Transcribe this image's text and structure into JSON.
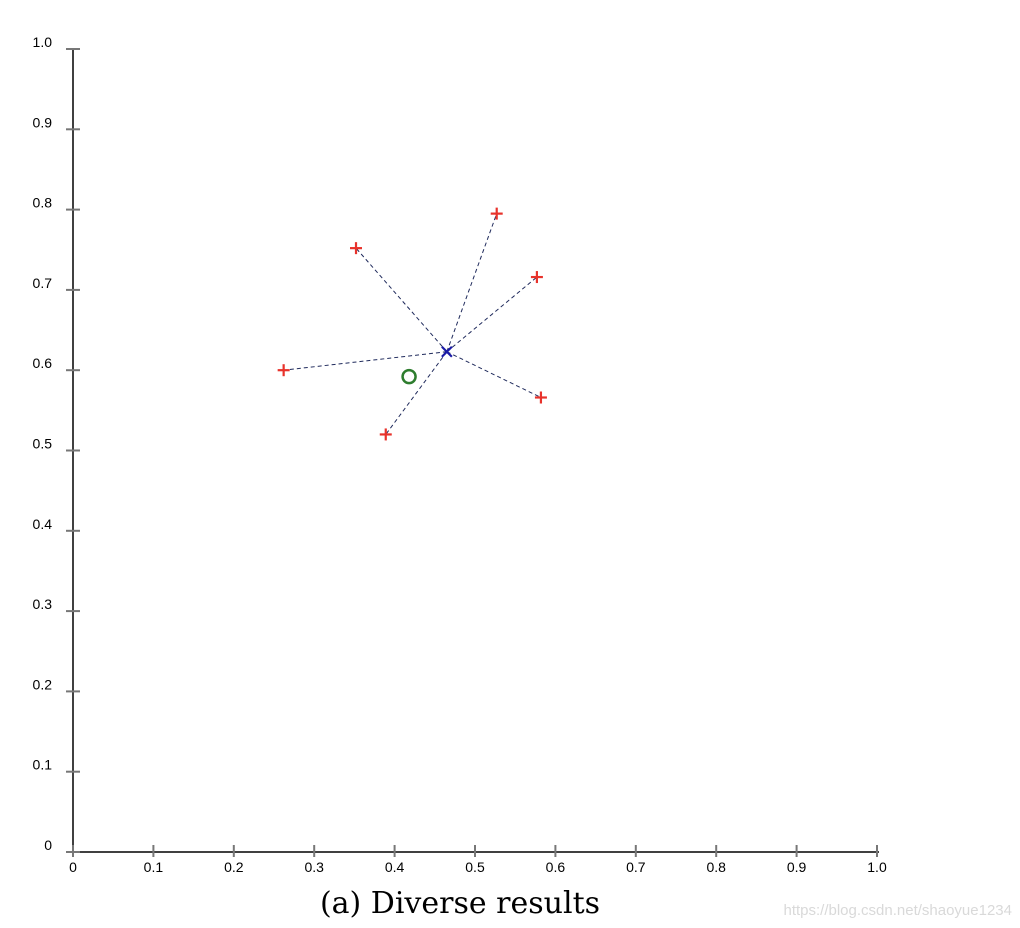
{
  "chart_data": {
    "type": "scatter",
    "title": "",
    "xlabel": "",
    "ylabel": "",
    "xlim": [
      0,
      1
    ],
    "ylim": [
      0,
      1
    ],
    "grid": false,
    "x_ticks": [
      "0",
      "0.1",
      "0.2",
      "0.3",
      "0.4",
      "0.5",
      "0.6",
      "0.7",
      "0.8",
      "0.9",
      "1.0"
    ],
    "y_ticks": [
      "0",
      "0.1",
      "0.2",
      "0.3",
      "0.4",
      "0.5",
      "0.6",
      "0.7",
      "0.8",
      "0.9",
      "1.0"
    ],
    "series": [
      {
        "marker": "plus",
        "color": "#e8322b",
        "points": [
          {
            "x": 0.352,
            "y": 0.752
          },
          {
            "x": 0.527,
            "y": 0.795
          },
          {
            "x": 0.577,
            "y": 0.716
          },
          {
            "x": 0.262,
            "y": 0.6
          },
          {
            "x": 0.582,
            "y": 0.566
          },
          {
            "x": 0.389,
            "y": 0.52
          }
        ]
      },
      {
        "marker": "x",
        "color": "#1a1aa6",
        "points": [
          {
            "x": 0.465,
            "y": 0.623
          }
        ]
      },
      {
        "marker": "circle",
        "color": "#2e7d2e",
        "points": [
          {
            "x": 0.418,
            "y": 0.592
          }
        ]
      }
    ],
    "connector_style": "dashed",
    "connector_color": "#1f2a5c"
  },
  "caption": "(a) Diverse results",
  "watermark": "https://blog.csdn.net/shaoyue1234"
}
